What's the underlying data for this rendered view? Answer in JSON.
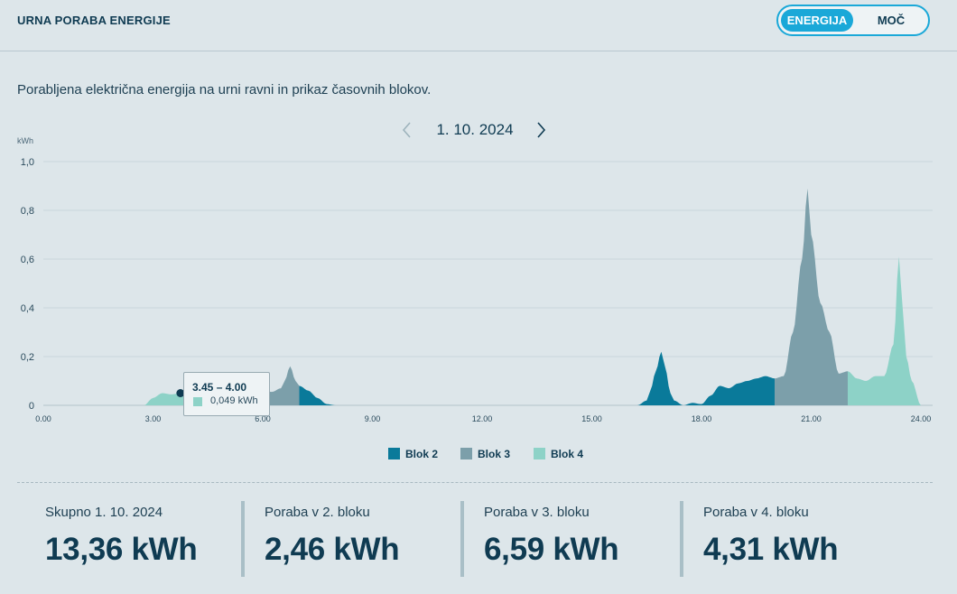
{
  "header": {
    "title": "URNA PORABA ENERGIJE"
  },
  "toggle": {
    "options": [
      "ENERGIJA",
      "MOČ"
    ],
    "selected": "ENERGIJA"
  },
  "subtitle": "Porabljena električna energija na urni ravni in prikaz časovnih blokov.",
  "date_nav": {
    "date": "1. 10. 2024",
    "prev_icon": "chevron-left-icon",
    "next_icon": "chevron-right-icon"
  },
  "tooltip": {
    "time": "3.45 – 4.00",
    "value": "0,049 kWh"
  },
  "colors": {
    "blok2": "#0a7a9a",
    "blok3": "#7c9faa",
    "blok4": "#8dd2c7",
    "accent": "#1aa8d8",
    "text": "#0f3b52"
  },
  "chart_data": {
    "type": "area",
    "ylabel": "kWh",
    "ylim": [
      0,
      1
    ],
    "xlim": [
      0,
      24
    ],
    "y_ticks": [
      "0",
      "0,2",
      "0,4",
      "0,6",
      "0,8",
      "1,0"
    ],
    "x_ticks": [
      "0.00",
      "3.00",
      "6.00",
      "9.00",
      "12.00",
      "15.00",
      "18.00",
      "21.00",
      "24.00"
    ],
    "grid": true,
    "legend_position": "bottom-center",
    "legend": [
      "Blok 2",
      "Blok 3",
      "Blok 4"
    ],
    "x": [
      2.75,
      3.0,
      3.25,
      3.5,
      3.75,
      4.0,
      4.25,
      4.5,
      4.75,
      5.0,
      5.25,
      5.5,
      5.75,
      6.0,
      6.25,
      6.5,
      6.6,
      6.75,
      6.9,
      7.0,
      7.25,
      7.5,
      7.75,
      8.0,
      16.25,
      16.5,
      16.6,
      16.75,
      16.9,
      17.0,
      17.15,
      17.25,
      17.5,
      17.75,
      18.0,
      18.25,
      18.5,
      18.75,
      19.0,
      19.25,
      19.5,
      19.75,
      20.0,
      20.25,
      20.5,
      20.75,
      20.9,
      21.0,
      21.25,
      21.5,
      21.75,
      22.0,
      22.25,
      22.5,
      22.75,
      23.0,
      23.25,
      23.4,
      23.5,
      23.6,
      23.75,
      24.0
    ],
    "y": [
      0.0,
      0.03,
      0.05,
      0.045,
      0.05,
      0.05,
      0.04,
      0.045,
      0.04,
      0.05,
      0.045,
      0.05,
      0.05,
      0.06,
      0.055,
      0.07,
      0.1,
      0.16,
      0.1,
      0.08,
      0.06,
      0.03,
      0.005,
      0.0,
      0.0,
      0.02,
      0.06,
      0.14,
      0.22,
      0.16,
      0.05,
      0.02,
      0.0,
      0.01,
      0.005,
      0.04,
      0.08,
      0.07,
      0.09,
      0.1,
      0.11,
      0.12,
      0.11,
      0.12,
      0.3,
      0.6,
      0.89,
      0.7,
      0.42,
      0.3,
      0.13,
      0.14,
      0.11,
      0.1,
      0.12,
      0.12,
      0.25,
      0.61,
      0.4,
      0.2,
      0.1,
      0.0
    ],
    "blocks": [
      {
        "name": "Blok 4",
        "from": 0,
        "to": 6
      },
      {
        "name": "Blok 3",
        "from": 6,
        "to": 7
      },
      {
        "name": "Blok 2",
        "from": 7,
        "to": 14
      },
      {
        "name": "Blok 2",
        "from": 16,
        "to": 20
      },
      {
        "name": "Blok 3",
        "from": 20,
        "to": 22
      },
      {
        "name": "Blok 4",
        "from": 22,
        "to": 24
      }
    ]
  },
  "stats": [
    {
      "label": "Skupno 1. 10. 2024",
      "value": "13,36 kWh"
    },
    {
      "label": "Poraba v 2. bloku",
      "value": "2,46 kWh"
    },
    {
      "label": "Poraba v 3. bloku",
      "value": "6,59 kWh"
    },
    {
      "label": "Poraba v 4. bloku",
      "value": "4,31 kWh"
    }
  ]
}
